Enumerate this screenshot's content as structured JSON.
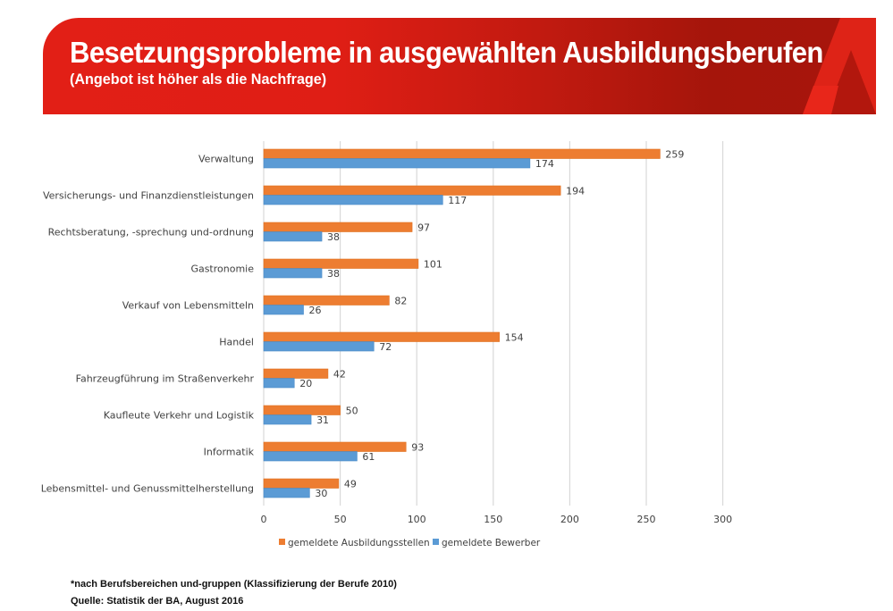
{
  "header": {
    "title": "Besetzungsprobleme in ausgewählten Ausbildungsberufen",
    "subtitle": "(Angebot ist höher als die Nachfrage)",
    "logo_icon": "arbeitsagentur-a-logo-icon"
  },
  "colors": {
    "banner_red": "#e21f16",
    "banner_dark_red": "#a5150b",
    "series_orange": "#ed7d31",
    "series_blue": "#5b9bd5",
    "grid": "#d9d9d9"
  },
  "chart_data": {
    "type": "bar",
    "orientation": "horizontal",
    "title": "Besetzungsprobleme in ausgewählten Ausbildungsberufen",
    "subtitle": "(Angebot ist höher als die Nachfrage)",
    "xlabel": "",
    "ylabel": "",
    "categories": [
      "Verwaltung",
      "Versicherungs- und Finanzdienstleistungen",
      "Rechtsberatung, -sprechung und-ordnung",
      "Gastronomie",
      "Verkauf von Lebensmitteln",
      "Handel",
      "Fahrzeugführung im Straßenverkehr",
      "Kaufleute Verkehr und Logistik",
      "Informatik",
      "Lebensmittel- und Genussmittelherstellung"
    ],
    "series": [
      {
        "name": "gemeldete Ausbildungsstellen",
        "color": "#ed7d31",
        "values": [
          259,
          194,
          97,
          101,
          82,
          154,
          42,
          50,
          93,
          49
        ]
      },
      {
        "name": "gemeldete Bewerber",
        "color": "#5b9bd5",
        "values": [
          174,
          117,
          38,
          38,
          26,
          72,
          20,
          31,
          61,
          30
        ]
      }
    ],
    "xlim": [
      0,
      300
    ],
    "xticks": [
      0,
      50,
      100,
      150,
      200,
      250,
      300
    ],
    "grid": true,
    "data_labels": true,
    "legend_position": "bottom"
  },
  "footnotes": {
    "note": "*nach Berufsbereichen und-gruppen (Klassifizierung der Berufe 2010)",
    "source": "Quelle: Statistik der BA, August 2016"
  }
}
